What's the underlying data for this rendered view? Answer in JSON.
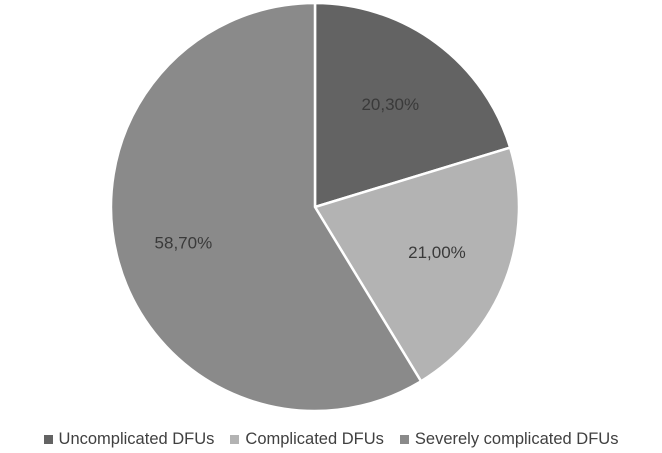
{
  "chart_data": {
    "type": "pie",
    "title": "",
    "categories": [
      "Uncomplicated DFUs",
      "Complicated DFUs",
      "Severely complicated DFUs"
    ],
    "values": [
      20.3,
      21.0,
      58.7
    ],
    "labels": [
      "20,30%",
      "21,00%",
      "58,70%"
    ],
    "colors": [
      "#636363",
      "#b3b3b3",
      "#8a8a8a"
    ],
    "start_angle": "12 o'clock",
    "direction": "clockwise",
    "legend_position": "bottom"
  },
  "legend": {
    "items": [
      {
        "label": "Uncomplicated DFUs",
        "color": "#636363"
      },
      {
        "label": "Complicated DFUs",
        "color": "#b3b3b3"
      },
      {
        "label": "Severely complicated DFUs",
        "color": "#8a8a8a"
      }
    ]
  }
}
